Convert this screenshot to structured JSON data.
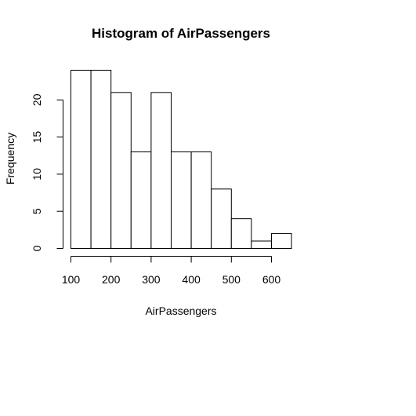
{
  "chart_data": {
    "type": "bar",
    "title": "Histogram of AirPassengers",
    "xlabel": "AirPassengers",
    "ylabel": "Frequency",
    "bins": [
      {
        "start": 100,
        "end": 150,
        "count": 24
      },
      {
        "start": 150,
        "end": 200,
        "count": 24
      },
      {
        "start": 200,
        "end": 250,
        "count": 21
      },
      {
        "start": 250,
        "end": 300,
        "count": 13
      },
      {
        "start": 300,
        "end": 350,
        "count": 21
      },
      {
        "start": 350,
        "end": 400,
        "count": 13
      },
      {
        "start": 400,
        "end": 450,
        "count": 13
      },
      {
        "start": 450,
        "end": 500,
        "count": 8
      },
      {
        "start": 500,
        "end": 550,
        "count": 4
      },
      {
        "start": 550,
        "end": 600,
        "count": 1
      },
      {
        "start": 600,
        "end": 650,
        "count": 2
      }
    ],
    "x_ticks": [
      "100",
      "200",
      "300",
      "400",
      "500",
      "600"
    ],
    "y_ticks": [
      "0",
      "5",
      "10",
      "15",
      "20"
    ],
    "xlim": [
      100,
      650
    ],
    "ylim": [
      0,
      24
    ],
    "grid": false,
    "colors": {
      "bar_fill": "#ffffff",
      "bar_stroke": "#000000"
    }
  }
}
